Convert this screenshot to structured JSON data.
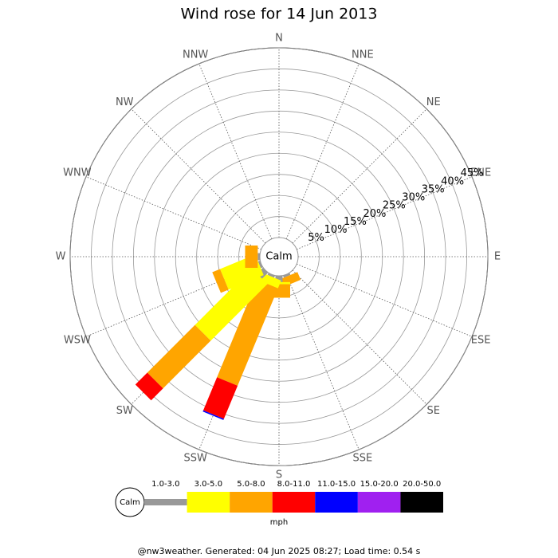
{
  "chart_data": {
    "type": "windrose",
    "title": "Wind rose for 14 Jun 2013",
    "calm_label": "Calm",
    "unit_label": "mph",
    "footer": "@nw3weather. Generated: 04 Jun 2025 08:27; Load time: 0.54 s",
    "categories": [
      "N",
      "NNE",
      "NE",
      "ENE",
      "E",
      "ESE",
      "SE",
      "SSE",
      "S",
      "SSW",
      "SW",
      "WSW",
      "W",
      "WNW",
      "NW",
      "NNW"
    ],
    "series": [
      {
        "name": "1.0-3.0",
        "color": "#999999",
        "values": [
          0,
          0,
          0,
          0,
          0,
          0,
          0,
          0.5,
          1.5,
          0.5,
          2,
          0.5,
          0.5,
          0,
          0,
          0
        ]
      },
      {
        "name": "3.0-5.0",
        "color": "#ffff00",
        "values": [
          0,
          0,
          0,
          0,
          0,
          0,
          0,
          0,
          0.5,
          2,
          19,
          9,
          0,
          0,
          0,
          0
        ]
      },
      {
        "name": "5.0-8.0",
        "color": "#ffa500",
        "values": [
          0,
          0,
          0,
          0,
          0,
          0,
          0,
          2,
          3.2,
          25,
          16,
          2,
          3,
          0,
          0,
          0
        ]
      },
      {
        "name": "8.0-11.0",
        "color": "#ff0000",
        "values": [
          0,
          0,
          0,
          0,
          0,
          0,
          0,
          0,
          0,
          8.5,
          4,
          0,
          0,
          0,
          0,
          0
        ]
      },
      {
        "name": "11.0-15.0",
        "color": "#0000ff",
        "values": [
          0,
          0,
          0,
          0,
          0,
          0,
          0,
          0,
          0,
          0.3,
          0,
          0,
          0,
          0,
          0,
          0
        ]
      },
      {
        "name": "15.0-20.0",
        "color": "#a020f0",
        "values": [
          0,
          0,
          0,
          0,
          0,
          0,
          0,
          0,
          0,
          0,
          0,
          0,
          0,
          0,
          0,
          0
        ]
      },
      {
        "name": "20.0-50.0",
        "color": "#000000",
        "values": [
          0,
          0,
          0,
          0,
          0,
          0,
          0,
          0,
          0,
          0,
          0,
          0,
          0,
          0,
          0,
          0
        ]
      }
    ],
    "rlim": [
      0,
      45
    ],
    "rticks": [
      {
        "value": 5,
        "label": "5%"
      },
      {
        "value": 10,
        "label": "10%"
      },
      {
        "value": 15,
        "label": "15%"
      },
      {
        "value": 20,
        "label": "20%"
      },
      {
        "value": 25,
        "label": "25%"
      },
      {
        "value": 30,
        "label": "30%"
      },
      {
        "value": 35,
        "label": "35%"
      },
      {
        "value": 40,
        "label": "40%"
      },
      {
        "value": 45,
        "label": "45%"
      }
    ]
  }
}
